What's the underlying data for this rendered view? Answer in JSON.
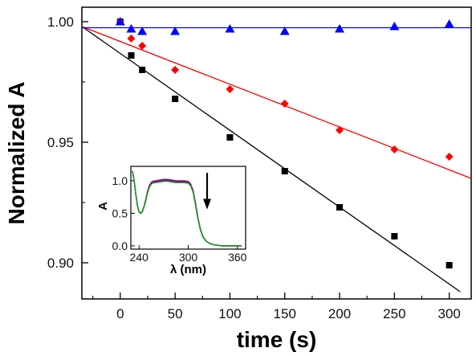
{
  "chart_data": {
    "type": "scatter",
    "title": "",
    "xlabel": "time (s)",
    "ylabel": "Normalized A",
    "xlim": [
      -35,
      320
    ],
    "ylim": [
      0.885,
      1.006
    ],
    "x_ticks": [
      0,
      50,
      100,
      150,
      200,
      250,
      300
    ],
    "y_ticks": [
      0.9,
      0.95,
      1.0
    ],
    "y_tick_labels": [
      "0.90",
      "0.95",
      "1.00"
    ],
    "grid": false,
    "legend": "none",
    "series": [
      {
        "marker": "square",
        "color": "#000000",
        "points": [
          [
            0,
            1.0
          ],
          [
            10,
            0.986
          ],
          [
            20,
            0.98
          ],
          [
            50,
            0.968
          ],
          [
            100,
            0.952
          ],
          [
            150,
            0.938
          ],
          [
            200,
            0.923
          ],
          [
            250,
            0.911
          ],
          [
            300,
            0.899
          ]
        ],
        "fit": [
          [
            -35,
            0.998
          ],
          [
            310,
            0.888
          ]
        ]
      },
      {
        "marker": "diamond",
        "color": "#ff0000",
        "points": [
          [
            0,
            1.0
          ],
          [
            10,
            0.993
          ],
          [
            20,
            0.99
          ],
          [
            50,
            0.98
          ],
          [
            100,
            0.972
          ],
          [
            150,
            0.966
          ],
          [
            200,
            0.955
          ],
          [
            250,
            0.947
          ],
          [
            300,
            0.944
          ]
        ],
        "fit": [
          [
            -35,
            0.998
          ],
          [
            320,
            0.935
          ]
        ]
      },
      {
        "marker": "triangle",
        "color": "#0000ff",
        "points": [
          [
            0,
            1.0
          ],
          [
            10,
            0.997
          ],
          [
            20,
            0.996
          ],
          [
            50,
            0.996
          ],
          [
            100,
            0.997
          ],
          [
            150,
            0.996
          ],
          [
            200,
            0.997
          ],
          [
            250,
            0.998
          ],
          [
            300,
            0.999
          ]
        ],
        "fit": [
          [
            -35,
            0.9975
          ],
          [
            320,
            0.9975
          ]
        ]
      }
    ],
    "inset": {
      "type": "line",
      "xlabel": "λ (nm)",
      "ylabel": "A",
      "xlim": [
        230,
        370
      ],
      "ylim": [
        -0.05,
        1.22
      ],
      "x_ticks": [
        240,
        300,
        360
      ],
      "y_ticks": [
        0.0,
        0.5,
        1.0
      ],
      "y_tick_labels": [
        "0.0",
        "0.5",
        "1.0"
      ],
      "arrow": "down",
      "series": [
        {
          "color": "#ff3030",
          "x": [
            232,
            234,
            236,
            238,
            240,
            242,
            244,
            246,
            248,
            250,
            252,
            254,
            256,
            260,
            265,
            270,
            275,
            280,
            285,
            290,
            295,
            300,
            303,
            306,
            309,
            312,
            315,
            318,
            322,
            326,
            330,
            335,
            340,
            345,
            350,
            355,
            360,
            365
          ],
          "y": [
            1.15,
            1.0,
            0.8,
            0.62,
            0.52,
            0.5,
            0.53,
            0.6,
            0.7,
            0.82,
            0.91,
            0.96,
            0.99,
            1.0,
            1.01,
            1.02,
            1.02,
            1.01,
            1.0,
            1.0,
            1.0,
            0.99,
            0.95,
            0.85,
            0.65,
            0.42,
            0.25,
            0.14,
            0.07,
            0.04,
            0.02,
            0.01,
            0.0,
            0.0,
            0.0,
            0.0,
            0.0,
            0.0
          ]
        },
        {
          "color": "#0000cc",
          "x": [
            232,
            234,
            236,
            238,
            240,
            242,
            244,
            246,
            248,
            250,
            252,
            254,
            256,
            260,
            265,
            270,
            275,
            280,
            285,
            290,
            295,
            300,
            303,
            306,
            309,
            312,
            315,
            318,
            322,
            326,
            330,
            335,
            340,
            345,
            350,
            355,
            360,
            365
          ],
          "y": [
            1.15,
            1.0,
            0.8,
            0.62,
            0.52,
            0.5,
            0.53,
            0.6,
            0.7,
            0.81,
            0.9,
            0.95,
            0.98,
            0.99,
            1.0,
            1.01,
            1.01,
            1.0,
            0.99,
            0.99,
            0.99,
            0.98,
            0.94,
            0.84,
            0.64,
            0.41,
            0.25,
            0.14,
            0.07,
            0.04,
            0.02,
            0.01,
            0.0,
            0.0,
            0.0,
            0.0,
            0.0,
            0.0
          ]
        },
        {
          "color": "#cc00cc",
          "x": [
            232,
            234,
            236,
            238,
            240,
            242,
            244,
            246,
            248,
            250,
            252,
            254,
            256,
            260,
            265,
            270,
            275,
            280,
            285,
            290,
            295,
            300,
            303,
            306,
            309,
            312,
            315,
            318,
            322,
            326,
            330,
            335,
            340,
            345,
            350,
            355,
            360,
            365
          ],
          "y": [
            1.15,
            1.0,
            0.8,
            0.62,
            0.52,
            0.5,
            0.53,
            0.6,
            0.69,
            0.8,
            0.89,
            0.94,
            0.97,
            0.98,
            0.99,
            1.0,
            1.0,
            0.99,
            0.98,
            0.98,
            0.98,
            0.97,
            0.93,
            0.83,
            0.63,
            0.41,
            0.24,
            0.14,
            0.07,
            0.04,
            0.02,
            0.01,
            0.0,
            0.0,
            0.0,
            0.0,
            0.0,
            0.0
          ]
        },
        {
          "color": "#00aa00",
          "x": [
            232,
            234,
            236,
            238,
            240,
            242,
            244,
            246,
            248,
            250,
            252,
            254,
            256,
            260,
            265,
            270,
            275,
            280,
            285,
            290,
            295,
            300,
            303,
            306,
            309,
            312,
            315,
            318,
            322,
            326,
            330,
            335,
            340,
            345,
            350,
            355,
            360,
            365
          ],
          "y": [
            1.15,
            1.0,
            0.8,
            0.62,
            0.52,
            0.5,
            0.52,
            0.59,
            0.68,
            0.79,
            0.88,
            0.93,
            0.96,
            0.97,
            0.98,
            0.99,
            0.99,
            0.98,
            0.97,
            0.97,
            0.97,
            0.96,
            0.92,
            0.82,
            0.62,
            0.4,
            0.24,
            0.13,
            0.07,
            0.04,
            0.02,
            0.01,
            0.0,
            0.0,
            0.0,
            0.0,
            0.0,
            0.0
          ]
        }
      ]
    }
  }
}
